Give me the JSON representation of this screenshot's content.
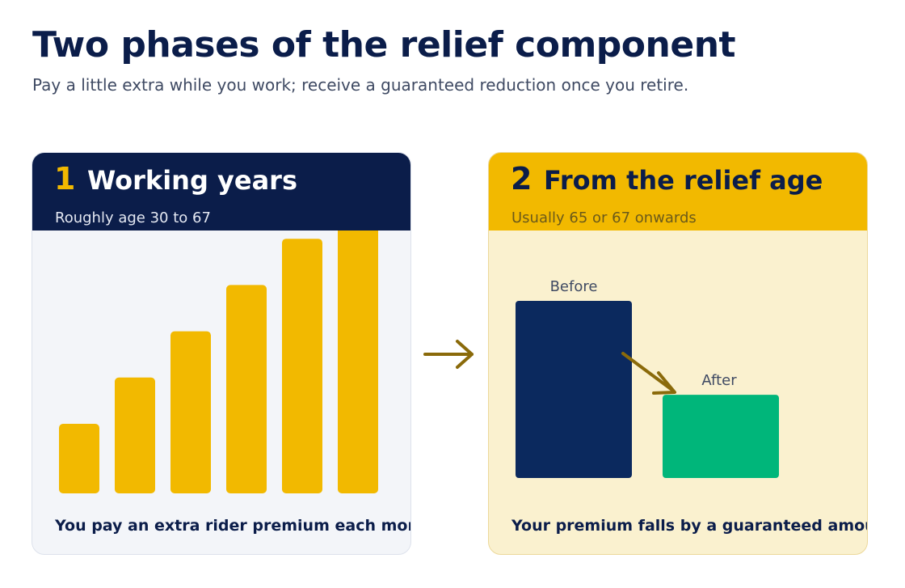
{
  "title": "Two phases of the relief component",
  "subtitle": "Pay a little extra while you work; receive a guaranteed reduction once you retire.",
  "phase1": {
    "number": "1",
    "title": "Working years",
    "subtitle": "Roughly age 30 to 67",
    "caption": "You pay an extra rider premium each month.",
    "bars": [
      1,
      2,
      3,
      4,
      5,
      6
    ],
    "bar_color": "#f2b900"
  },
  "phase2": {
    "number": "2",
    "title": "From the relief age",
    "subtitle": "Usually 65 or 67 onwards",
    "caption": "Your premium falls by a guaranteed amount.",
    "before_label": "Before",
    "after_label": "After",
    "before_value": 1.0,
    "after_value": 0.47,
    "before_color": "#0b295e",
    "after_color": "#00b67a"
  },
  "colors": {
    "navy": "#0b1d4a",
    "gold": "#f2b900",
    "arrow": "#8a6a0a"
  }
}
